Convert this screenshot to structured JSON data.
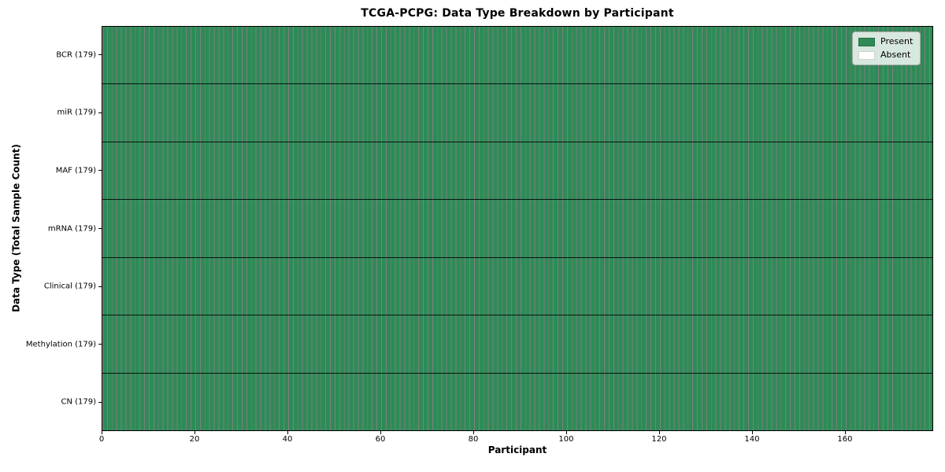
{
  "chart_data": {
    "type": "heatmap",
    "title": "TCGA-PCPG: Data Type Breakdown by Participant",
    "xlabel": "Participant",
    "ylabel": "Data Type (Total Sample Count)",
    "n_participants": 179,
    "x_range": [
      0,
      179
    ],
    "x_ticks": [
      0,
      20,
      40,
      60,
      80,
      100,
      120,
      140,
      160
    ],
    "grid": true,
    "rows": [
      {
        "label": "BCR (179)",
        "data_type": "BCR",
        "total_samples": 179,
        "present_count": 179,
        "absent_count": 0
      },
      {
        "label": "miR (179)",
        "data_type": "miR",
        "total_samples": 179,
        "present_count": 179,
        "absent_count": 0
      },
      {
        "label": "MAF (179)",
        "data_type": "MAF",
        "total_samples": 179,
        "present_count": 179,
        "absent_count": 0
      },
      {
        "label": "mRNA (179)",
        "data_type": "mRNA",
        "total_samples": 179,
        "present_count": 179,
        "absent_count": 0
      },
      {
        "label": "Clinical (179)",
        "data_type": "Clinical",
        "total_samples": 179,
        "present_count": 179,
        "absent_count": 0
      },
      {
        "label": "Methylation (179)",
        "data_type": "Methylation",
        "total_samples": 179,
        "present_count": 179,
        "absent_count": 0
      },
      {
        "label": "CN (179)",
        "data_type": "CN",
        "total_samples": 179,
        "present_count": 179,
        "absent_count": 0
      }
    ],
    "legend": {
      "position": "upper right",
      "entries": [
        {
          "label": "Present",
          "color": "#2e8b57"
        },
        {
          "label": "Absent",
          "color": "#ffffff"
        }
      ]
    },
    "colors": {
      "present": "#2e8b57",
      "absent": "#ffffff",
      "cell_edge": "#000000"
    }
  }
}
